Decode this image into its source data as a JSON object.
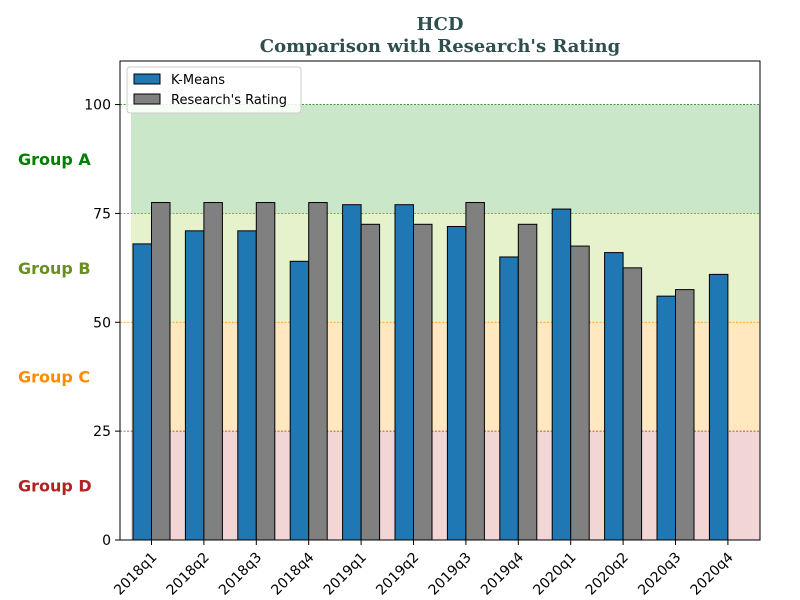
{
  "chart_data": {
    "type": "bar",
    "title": "HCD",
    "subtitle": "Comparison with Research's Rating",
    "categories": [
      "2018q1",
      "2018q2",
      "2018q3",
      "2018q4",
      "2019q1",
      "2019q2",
      "2019q3",
      "2019q4",
      "2020q1",
      "2020q2",
      "2020q3",
      "2020q4"
    ],
    "series": [
      {
        "name": "K-Means",
        "color": "#1f77b4",
        "values": [
          68,
          71,
          71,
          64,
          77,
          77,
          72,
          65,
          76,
          66,
          56,
          61
        ]
      },
      {
        "name": "Research's Rating",
        "color": "#808080",
        "values": [
          77.5,
          77.5,
          77.5,
          77.5,
          72.5,
          72.5,
          77.5,
          72.5,
          67.5,
          62.5,
          57.5,
          null
        ]
      }
    ],
    "ylim": [
      0,
      110
    ],
    "yticks": [
      0,
      25,
      50,
      75,
      100
    ],
    "legend": "top-left",
    "bands": [
      {
        "label": "Group A",
        "from": 75,
        "to": 100,
        "color": "#2ca02c",
        "label_color": "#008000",
        "line_color": "#228b22"
      },
      {
        "label": "Group B",
        "from": 50,
        "to": 75,
        "color": "#9acd32",
        "label_color": "#6b8e23",
        "line_color": "#6b8e23"
      },
      {
        "label": "Group C",
        "from": 25,
        "to": 50,
        "color": "#ffa500",
        "label_color": "#ff8c00",
        "line_color": "#ff8c00"
      },
      {
        "label": "Group D",
        "from": 0,
        "to": 25,
        "color": "#cd5c5c",
        "label_color": "#b22222",
        "line_color": "#b22222"
      }
    ]
  }
}
